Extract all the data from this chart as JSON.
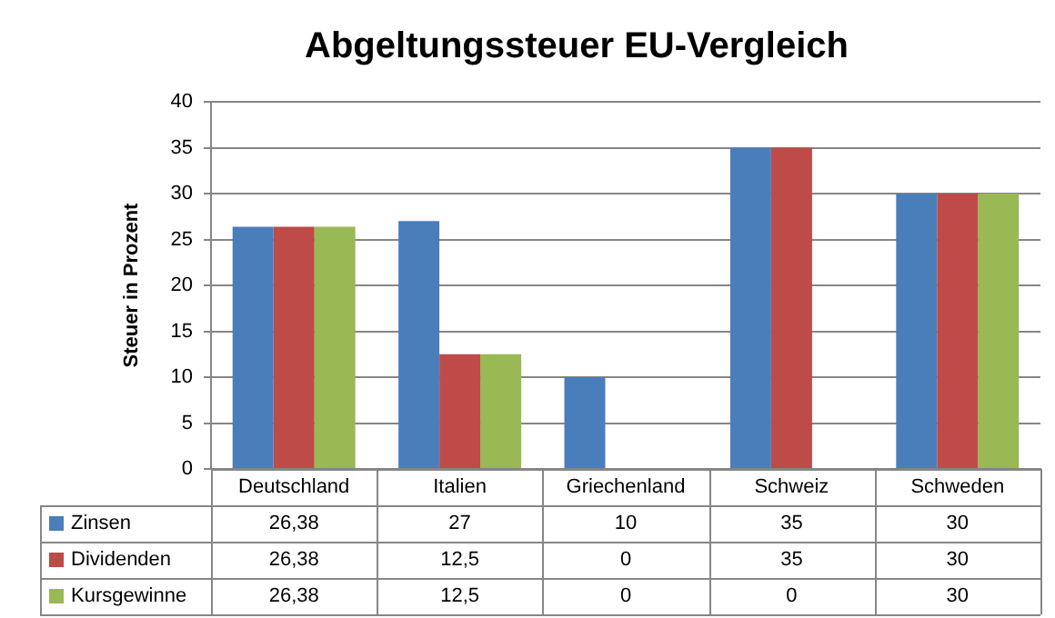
{
  "chart_data": {
    "type": "bar",
    "title": "Abgeltungssteuer EU-Vergleich",
    "ylabel": "Steuer in Prozent",
    "categories": [
      "Deutschland",
      "Italien",
      "Griechenland",
      "Schweiz",
      "Schweden"
    ],
    "series": [
      {
        "name": "Zinsen",
        "color": "#4a7ebb",
        "values": [
          26.38,
          27,
          10,
          35,
          30
        ],
        "value_labels": [
          "26,38",
          "27",
          "10",
          "35",
          "30"
        ]
      },
      {
        "name": "Dividenden",
        "color": "#be4b48",
        "values": [
          26.38,
          12.5,
          0,
          35,
          30
        ],
        "value_labels": [
          "26,38",
          "12,5",
          "0",
          "35",
          "30"
        ]
      },
      {
        "name": "Kursgewinne",
        "color": "#98b954",
        "values": [
          26.38,
          12.5,
          0,
          0,
          30
        ],
        "value_labels": [
          "26,38",
          "12,5",
          "0",
          "0",
          "30"
        ]
      }
    ],
    "ylim": [
      0,
      40
    ],
    "yticks": [
      0,
      5,
      10,
      15,
      20,
      25,
      30,
      35,
      40
    ],
    "grid": "y",
    "legend": "bottom"
  }
}
